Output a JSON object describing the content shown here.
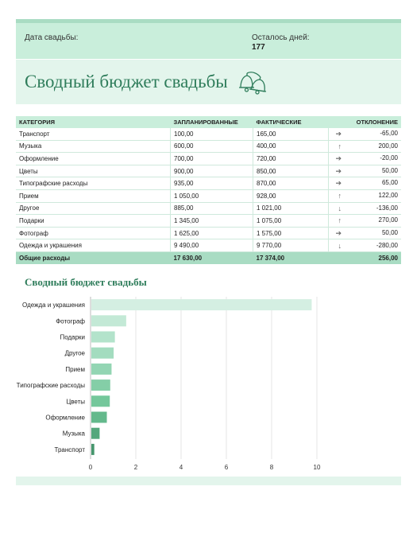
{
  "info": {
    "date_label": "Дата свадьбы:",
    "days_label": "Осталось дней:",
    "days_value": "177"
  },
  "title": "Сводный бюджет свадьбы",
  "table": {
    "headers": [
      "КАТЕГОРИЯ",
      "ЗАПЛАНИРОВАННЫЕ",
      "ФАКТИЧЕСКИЕ",
      "ОТКЛОНЕНИЕ"
    ],
    "rows": [
      {
        "category": "Транспорт",
        "planned": "100,00",
        "actual": "165,00",
        "arrow": "right",
        "diff": "-65,00"
      },
      {
        "category": "Музыка",
        "planned": "600,00",
        "actual": "400,00",
        "arrow": "up",
        "diff": "200,00"
      },
      {
        "category": "Оформление",
        "planned": "700,00",
        "actual": "720,00",
        "arrow": "right",
        "diff": "-20,00"
      },
      {
        "category": "Цветы",
        "planned": "900,00",
        "actual": "850,00",
        "arrow": "right",
        "diff": "50,00"
      },
      {
        "category": "Типографские расходы",
        "planned": "935,00",
        "actual": "870,00",
        "arrow": "right",
        "diff": "65,00"
      },
      {
        "category": "Прием",
        "planned": "1 050,00",
        "actual": "928,00",
        "arrow": "up",
        "diff": "122,00"
      },
      {
        "category": "Другое",
        "planned": "885,00",
        "actual": "1 021,00",
        "arrow": "down",
        "diff": "-136,00"
      },
      {
        "category": "Подарки",
        "planned": "1 345,00",
        "actual": "1 075,00",
        "arrow": "up",
        "diff": "270,00"
      },
      {
        "category": "Фотограф",
        "planned": "1 625,00",
        "actual": "1 575,00",
        "arrow": "right",
        "diff": "50,00"
      },
      {
        "category": "Одежда и украшения",
        "planned": "9 490,00",
        "actual": "9 770,00",
        "arrow": "down",
        "diff": "-280,00"
      }
    ],
    "total": {
      "label": "Общие расходы",
      "planned": "17 630,00",
      "actual": "17 374,00",
      "diff": "256,00"
    }
  },
  "chart_title": "Сводный бюджет свадьбы",
  "chart_data": {
    "type": "bar",
    "orientation": "horizontal",
    "categories": [
      "Одежда и украшения",
      "Фотограф",
      "Подарки",
      "Другое",
      "Прием",
      "Типографские расходы",
      "Цветы",
      "Оформление",
      "Музыка",
      "Транспорт"
    ],
    "values": [
      9.77,
      1.575,
      1.075,
      1.021,
      0.928,
      0.87,
      0.85,
      0.72,
      0.4,
      0.165
    ],
    "xlim": [
      0,
      10
    ],
    "xticks": [
      0,
      2,
      4,
      6,
      8,
      10
    ],
    "grid": true,
    "colors": [
      "#d4efe2",
      "#c3e9d6",
      "#b3e3cb",
      "#a3dcbf",
      "#93d5b3",
      "#84cea7",
      "#74c79b",
      "#64b98c",
      "#55a77c",
      "#46966d"
    ]
  }
}
